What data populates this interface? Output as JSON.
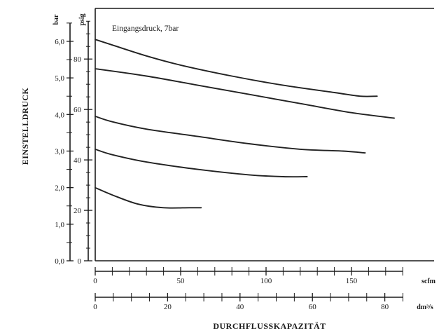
{
  "chart_data": {
    "type": "line",
    "annotation": "Eingangsdruck, 7bar",
    "xlabel": "DURCHFLUSSKAPAZITÄT",
    "ylabel": "EINSTELLDRUCK",
    "x_units": {
      "primary": "scfm",
      "secondary": "dm³/s"
    },
    "y_units": {
      "primary": "bar",
      "secondary": "psig"
    },
    "xlim_scfm": [
      0,
      180
    ],
    "xlim_dm3s": [
      0,
      85
    ],
    "ylim_bar": [
      0,
      6.9
    ],
    "ylim_psig": [
      0,
      100
    ],
    "grid": false,
    "y_ticks_bar": [
      "0,0",
      "1,0",
      "2,0",
      "3,0",
      "4,0",
      "5,0",
      "6,0"
    ],
    "y_ticks_psig": [
      "0",
      "20",
      "40",
      "60",
      "80"
    ],
    "x_ticks_scfm": [
      "0",
      "50",
      "100",
      "150"
    ],
    "x_ticks_dm3s": [
      "0",
      "20",
      "40",
      "60",
      "80"
    ],
    "series": [
      {
        "x": [
          0,
          10,
          30,
          50,
          80,
          110,
          140,
          155,
          165
        ],
        "y": [
          6.05,
          5.9,
          5.6,
          5.35,
          5.05,
          4.8,
          4.6,
          4.5,
          4.5
        ]
      },
      {
        "x": [
          0,
          30,
          60,
          90,
          120,
          150,
          175
        ],
        "y": [
          5.25,
          5.05,
          4.8,
          4.55,
          4.3,
          4.05,
          3.9
        ]
      },
      {
        "x": [
          0,
          10,
          30,
          60,
          90,
          120,
          145,
          158
        ],
        "y": [
          3.95,
          3.8,
          3.6,
          3.4,
          3.2,
          3.05,
          3.0,
          2.95
        ]
      },
      {
        "x": [
          0,
          10,
          30,
          60,
          90,
          110,
          124
        ],
        "y": [
          3.05,
          2.9,
          2.7,
          2.5,
          2.35,
          2.3,
          2.3
        ]
      },
      {
        "x": [
          0,
          10,
          25,
          40,
          55,
          62
        ],
        "y": [
          2.0,
          1.8,
          1.55,
          1.45,
          1.45,
          1.45
        ]
      }
    ]
  }
}
